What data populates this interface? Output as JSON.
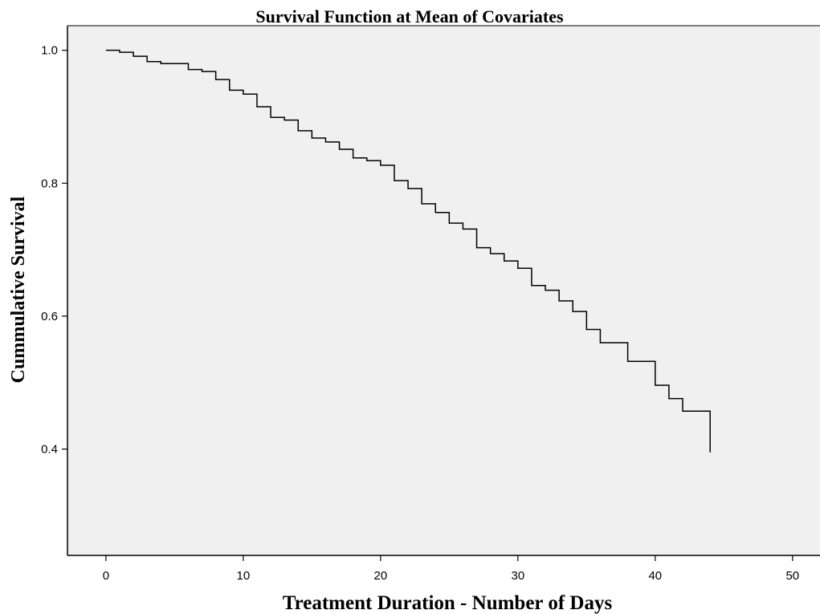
{
  "chart_data": {
    "type": "line",
    "step": true,
    "title": "Survival Function at Mean of Covariates",
    "xlabel": "Treatment Duration - Number of Days",
    "ylabel": "Cummulative Survival",
    "xlim": [
      -2.8,
      52
    ],
    "ylim": [
      0.24,
      1.037
    ],
    "xticks": [
      0,
      10,
      20,
      30,
      40,
      50
    ],
    "xtick_labels": [
      "0",
      "10",
      "20",
      "30",
      "40",
      "50"
    ],
    "yticks": [
      0.4,
      0.6,
      0.8,
      1.0
    ],
    "ytick_labels": [
      "0.4",
      "0.6",
      "0.8",
      "1.0"
    ],
    "grid": false,
    "colors": {
      "plot_background": "#f0f0f0",
      "line": "#000000"
    },
    "series": [
      {
        "x": [
          0,
          1,
          2,
          3,
          4,
          6,
          7,
          8,
          9,
          10,
          11,
          12,
          13,
          14,
          15,
          16,
          17,
          18,
          19,
          20,
          21,
          22,
          23,
          24,
          25,
          26,
          27,
          28,
          29,
          30,
          31,
          32,
          33,
          34,
          35,
          36,
          38,
          40,
          41,
          42,
          44
        ],
        "y": [
          1.0,
          0.997,
          0.991,
          0.983,
          0.98,
          0.971,
          0.968,
          0.956,
          0.94,
          0.934,
          0.915,
          0.899,
          0.895,
          0.879,
          0.868,
          0.862,
          0.851,
          0.838,
          0.834,
          0.827,
          0.804,
          0.792,
          0.769,
          0.756,
          0.74,
          0.731,
          0.703,
          0.694,
          0.683,
          0.672,
          0.646,
          0.639,
          0.623,
          0.607,
          0.58,
          0.56,
          0.532,
          0.496,
          0.476,
          0.457,
          0.395
        ]
      }
    ]
  }
}
